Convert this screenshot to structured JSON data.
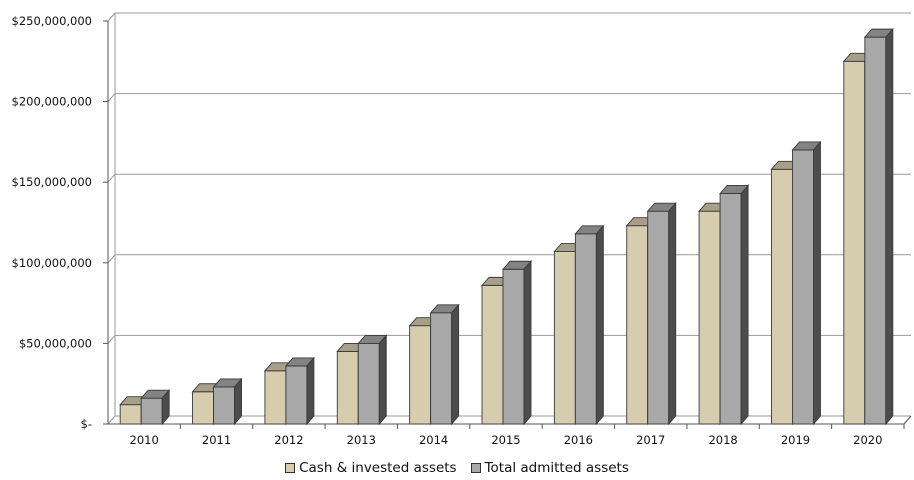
{
  "chart_data": {
    "type": "bar",
    "categories": [
      "2010",
      "2011",
      "2012",
      "2013",
      "2014",
      "2015",
      "2016",
      "2017",
      "2018",
      "2019",
      "2020"
    ],
    "series": [
      {
        "name": "Cash & invested assets",
        "color": "#d6ccae",
        "values": [
          12000000,
          20000000,
          33000000,
          45000000,
          61000000,
          86000000,
          107000000,
          123000000,
          132000000,
          158000000,
          225000000
        ]
      },
      {
        "name": "Total admitted assets",
        "color": "#a8a8a8",
        "values": [
          16000000,
          23000000,
          36000000,
          50000000,
          69000000,
          96000000,
          118000000,
          132000000,
          143000000,
          170000000,
          240000000
        ]
      }
    ],
    "yticks": [
      "$-",
      "$50,000,000",
      "$100,000,000",
      "$150,000,000",
      "$200,000,000",
      "$250,000,000"
    ],
    "ylim": [
      0,
      250000000
    ],
    "grid": true,
    "legend_position": "bottom",
    "style": "3d-column"
  }
}
